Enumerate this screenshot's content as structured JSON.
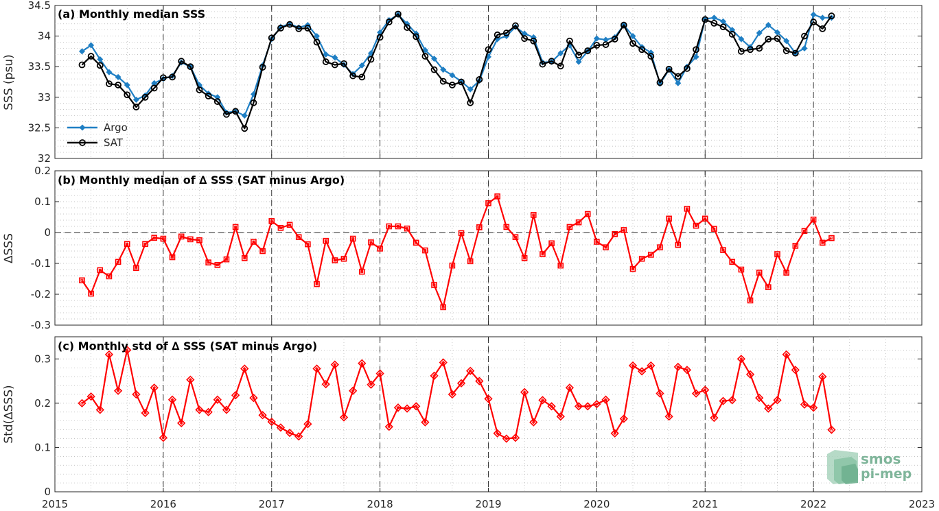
{
  "colors": {
    "argo": "#1f7fc4",
    "sat": "#000000",
    "delta": "#ff0000",
    "grid": "#b0b0b0",
    "logo": "#7fb59a"
  },
  "logo": {
    "line1": "smos",
    "line2": "pi-mep"
  },
  "x_ticks": [
    "2015",
    "2016",
    "2017",
    "2018",
    "2019",
    "2020",
    "2021",
    "2022",
    "2023"
  ],
  "chart_data": [
    {
      "type": "line",
      "title": "(a) Monthly median SSS",
      "ylabel": "SSS (psu)",
      "xlim": [
        2015,
        2023
      ],
      "ylim": [
        32,
        34.5
      ],
      "yticks": [
        "32",
        "32.5",
        "33",
        "33.5",
        "34",
        "34.5"
      ],
      "yticks_values": [
        32,
        32.5,
        33,
        33.5,
        34,
        34.5
      ],
      "grid": "dotted minor grid",
      "legend": "lower-left",
      "x_start": "2015-04",
      "series": [
        {
          "name": "Argo",
          "marker": "diamond-filled",
          "values": [
            33.75,
            33.85,
            33.62,
            33.41,
            33.33,
            33.2,
            32.96,
            33.03,
            33.23,
            33.3,
            33.35,
            33.57,
            33.5,
            33.2,
            33.06,
            33.0,
            32.75,
            32.77,
            32.7,
            33.05,
            33.52,
            33.95,
            34.15,
            34.2,
            34.14,
            34.18,
            34.0,
            33.7,
            33.65,
            33.53,
            33.38,
            33.52,
            33.72,
            34.06,
            34.26,
            34.35,
            34.2,
            34.04,
            33.77,
            33.63,
            33.45,
            33.36,
            33.26,
            33.13,
            33.27,
            33.66,
            33.95,
            34.0,
            34.15,
            34.04,
            33.98,
            33.57,
            33.58,
            33.72,
            33.85,
            33.58,
            33.75,
            33.96,
            33.94,
            33.98,
            34.18,
            34.0,
            33.82,
            33.73,
            33.22,
            33.45,
            33.23,
            33.5,
            33.66,
            34.28,
            34.3,
            34.24,
            34.1,
            33.95,
            33.82,
            34.05,
            34.18,
            34.06,
            33.92,
            33.72,
            33.8,
            34.35,
            34.3,
            34.3
          ]
        },
        {
          "name": "SAT",
          "marker": "circle-open",
          "values": [
            33.53,
            33.67,
            33.52,
            33.22,
            33.2,
            33.04,
            32.84,
            33.0,
            33.15,
            33.32,
            33.33,
            33.59,
            33.5,
            33.12,
            33.02,
            32.93,
            32.72,
            32.77,
            32.49,
            32.91,
            33.49,
            33.97,
            34.13,
            34.19,
            34.12,
            34.13,
            33.9,
            33.58,
            33.53,
            33.55,
            33.35,
            33.33,
            33.62,
            33.98,
            34.23,
            34.36,
            34.14,
            33.99,
            33.67,
            33.45,
            33.26,
            33.2,
            33.25,
            32.91,
            33.29,
            33.78,
            34.02,
            34.05,
            34.17,
            33.96,
            33.92,
            33.54,
            33.59,
            33.51,
            33.92,
            33.69,
            33.76,
            33.85,
            33.86,
            33.95,
            34.18,
            33.88,
            33.78,
            33.67,
            33.24,
            33.46,
            33.34,
            33.47,
            33.78,
            34.27,
            34.21,
            34.15,
            34.03,
            33.75,
            33.78,
            33.8,
            33.95,
            33.96,
            33.76,
            33.72,
            34.0,
            34.23,
            34.12,
            34.33
          ]
        }
      ]
    },
    {
      "type": "line",
      "title": "(b) Monthly median of ∆ SSS (SAT minus Argo)",
      "ylabel": "∆SSS",
      "xlim": [
        2015,
        2023
      ],
      "ylim": [
        -0.3,
        0.2
      ],
      "yticks": [
        "-0.3",
        "-0.2",
        "-0.1",
        "0",
        "0.1",
        "0.2"
      ],
      "yticks_values": [
        -0.3,
        -0.2,
        -0.1,
        0,
        0.1,
        0.2
      ],
      "reference_line": 0,
      "x_start": "2015-04",
      "series": [
        {
          "marker": "square-open",
          "values": [
            -0.155,
            -0.198,
            -0.122,
            -0.142,
            -0.095,
            -0.037,
            -0.115,
            -0.037,
            -0.017,
            -0.02,
            -0.08,
            -0.013,
            -0.022,
            -0.025,
            -0.097,
            -0.105,
            -0.087,
            0.018,
            -0.083,
            -0.03,
            -0.06,
            0.037,
            0.015,
            0.025,
            -0.015,
            -0.038,
            -0.167,
            -0.027,
            -0.09,
            -0.085,
            -0.02,
            -0.127,
            -0.032,
            -0.052,
            0.02,
            0.02,
            0.013,
            -0.033,
            -0.058,
            -0.17,
            -0.242,
            -0.107,
            -0.002,
            -0.093,
            0.017,
            0.095,
            0.117,
            0.018,
            -0.015,
            -0.083,
            0.057,
            -0.07,
            -0.035,
            -0.107,
            0.018,
            0.033,
            0.06,
            -0.03,
            -0.048,
            -0.005,
            0.008,
            -0.118,
            -0.085,
            -0.072,
            -0.048,
            0.045,
            -0.04,
            0.077,
            0.022,
            0.045,
            0.012,
            -0.057,
            -0.095,
            -0.12,
            -0.22,
            -0.13,
            -0.177,
            -0.07,
            -0.13,
            -0.043,
            0.005,
            0.042,
            -0.033,
            -0.018
          ]
        }
      ]
    },
    {
      "type": "line",
      "title": "(c) Monthly std of ∆ SSS (SAT minus Argo)",
      "ylabel": "Std(∆SSS)",
      "xlim": [
        2015,
        2023
      ],
      "ylim": [
        0,
        0.35
      ],
      "yticks": [
        "0",
        "0.1",
        "0.2",
        "0.3"
      ],
      "yticks_values": [
        0,
        0.1,
        0.2,
        0.3
      ],
      "x_start": "2015-04",
      "series": [
        {
          "marker": "diamond-open",
          "values": [
            0.2,
            0.215,
            0.185,
            0.31,
            0.228,
            0.32,
            0.22,
            0.178,
            0.235,
            0.122,
            0.208,
            0.155,
            0.253,
            0.185,
            0.18,
            0.208,
            0.185,
            0.218,
            0.278,
            0.212,
            0.173,
            0.158,
            0.145,
            0.133,
            0.125,
            0.153,
            0.278,
            0.243,
            0.287,
            0.168,
            0.228,
            0.29,
            0.242,
            0.267,
            0.147,
            0.19,
            0.188,
            0.193,
            0.157,
            0.262,
            0.292,
            0.22,
            0.245,
            0.273,
            0.25,
            0.21,
            0.132,
            0.12,
            0.122,
            0.225,
            0.157,
            0.207,
            0.193,
            0.17,
            0.235,
            0.193,
            0.193,
            0.198,
            0.208,
            0.132,
            0.165,
            0.285,
            0.272,
            0.285,
            0.222,
            0.17,
            0.282,
            0.275,
            0.222,
            0.23,
            0.167,
            0.205,
            0.207,
            0.3,
            0.265,
            0.212,
            0.188,
            0.207,
            0.31,
            0.275,
            0.197,
            0.19,
            0.26,
            0.14
          ]
        }
      ]
    }
  ]
}
